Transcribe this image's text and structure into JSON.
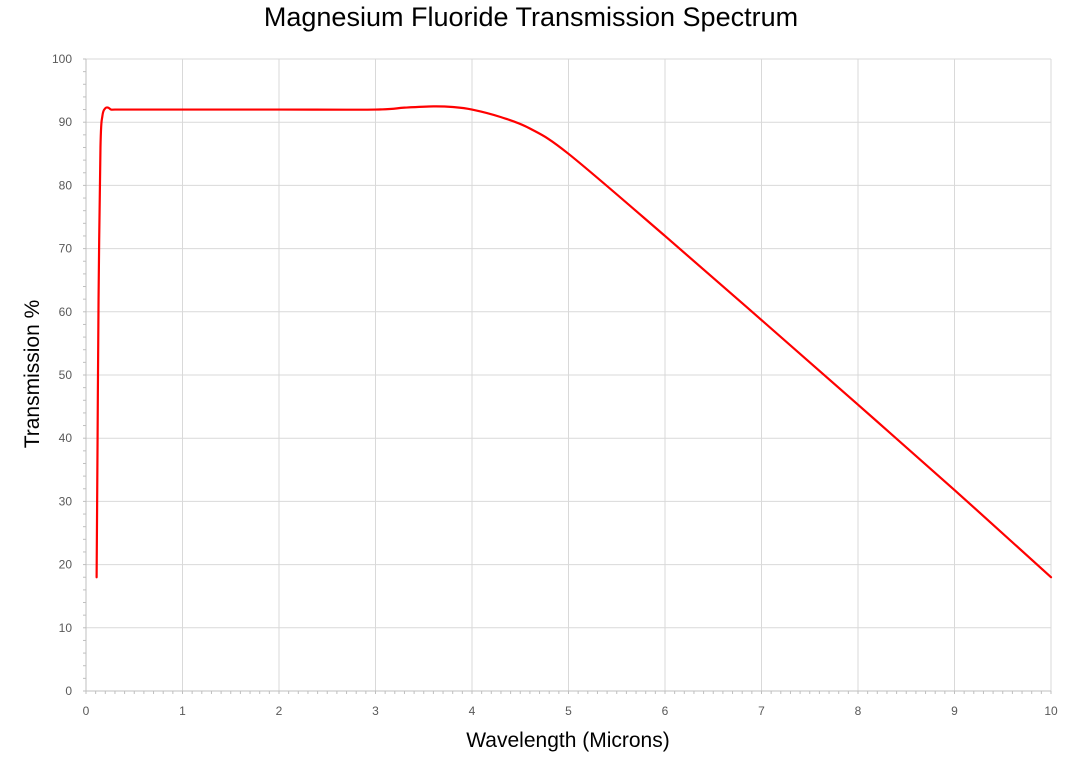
{
  "chart_data": {
    "type": "line",
    "title": "Magnesium Fluoride Transmission Spectrum",
    "xlabel": "Wavelength (Microns)",
    "ylabel": "Transmission %",
    "xlim": [
      0,
      10
    ],
    "ylim": [
      0,
      100
    ],
    "x_ticks": [
      0,
      1,
      2,
      3,
      4,
      5,
      6,
      7,
      8,
      9,
      10
    ],
    "y_ticks": [
      0,
      10,
      20,
      30,
      40,
      50,
      60,
      70,
      80,
      90,
      100
    ],
    "x_minor_ticks_per_major": 10,
    "y_minor_ticks_per_major": 5,
    "grid": true,
    "legend": false,
    "colors": {
      "line": "#ff0000",
      "grid": "#d9d9d9",
      "axis": "#bfbfbf",
      "tick_text": "#595959"
    },
    "series": [
      {
        "color": "#ff0000",
        "x": [
          0.11,
          0.12,
          0.13,
          0.15,
          0.17,
          0.2,
          0.23,
          0.26,
          0.3,
          0.5,
          1.0,
          2.0,
          3.0,
          3.3,
          3.6,
          3.8,
          4.0,
          4.3,
          4.6,
          5.0,
          6.0,
          7.0,
          8.0,
          9.0,
          10.0
        ],
        "y": [
          18,
          40,
          62,
          86,
          91,
          92.2,
          92.3,
          92.0,
          92,
          92,
          92,
          92,
          92,
          92.3,
          92.5,
          92.4,
          92,
          90.8,
          89,
          85,
          72,
          58.7,
          45.3,
          31.8,
          18
        ]
      }
    ]
  }
}
